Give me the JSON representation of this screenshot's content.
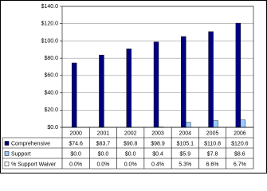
{
  "chart_data": {
    "type": "bar",
    "categories": [
      "2000",
      "2001",
      "2002",
      "2003",
      "2004",
      "2005",
      "2006"
    ],
    "series": [
      {
        "name": "Comprehensive",
        "color": "#000080",
        "values": [
          74.6,
          83.7,
          90.8,
          98.9,
          105.1,
          110.8,
          120.6
        ],
        "value_labels": [
          "$74.6",
          "$83.7",
          "$90.8",
          "$98.9",
          "$105.1",
          "$110.8",
          "$120.6"
        ]
      },
      {
        "name": "Support",
        "color": "#99ccff",
        "values": [
          0.0,
          0.0,
          0.0,
          0.4,
          5.9,
          7.8,
          8.6
        ],
        "value_labels": [
          "$0.0",
          "$0.0",
          "$0.0",
          "$0.4",
          "$5.9",
          "$7.8",
          "$8.6"
        ]
      },
      {
        "name": "% Support Waiver",
        "color": "#ffffff",
        "values": [
          0.0,
          0.0,
          0.0,
          0.4,
          5.3,
          6.6,
          6.7
        ],
        "value_labels": [
          "0.0%",
          "0.0%",
          "0.0%",
          "0.4%",
          "5.3%",
          "6.6%",
          "6.7%"
        ]
      }
    ],
    "ylim": [
      0,
      140
    ],
    "yticks": [
      {
        "value": 0,
        "label": "$0.0"
      },
      {
        "value": 20,
        "label": "$20.0"
      },
      {
        "value": 40,
        "label": "$40.0"
      },
      {
        "value": 60,
        "label": "$60.0"
      },
      {
        "value": 80,
        "label": "$80.0"
      },
      {
        "value": 100,
        "label": "$100.0"
      },
      {
        "value": 120,
        "label": "$120.0"
      },
      {
        "value": 140,
        "label": "$140.0"
      }
    ],
    "grid": true
  }
}
